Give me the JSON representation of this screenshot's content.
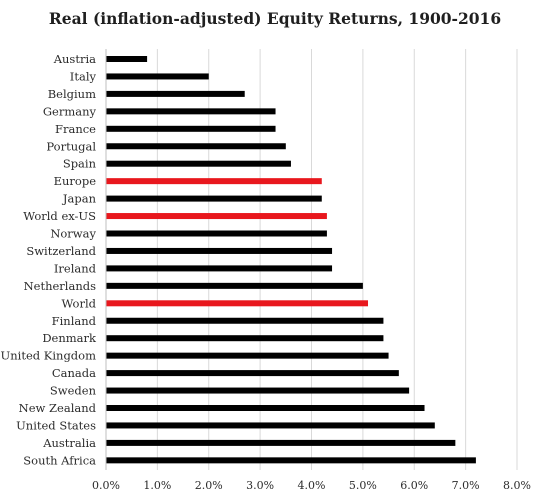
{
  "chart_data": {
    "type": "bar",
    "orientation": "horizontal",
    "title": "Real (inflation-adjusted) Equity Returns, 1900-2016",
    "xlabel": "",
    "ylabel": "",
    "categories": [
      "Austria",
      "Italy",
      "Belgium",
      "Germany",
      "France",
      "Portugal",
      "Spain",
      "Europe",
      "Japan",
      "World ex-US",
      "Norway",
      "Switzerland",
      "Ireland",
      "Netherlands",
      "World",
      "Finland",
      "Denmark",
      "United Kingdom",
      "Canada",
      "Sweden",
      "New Zealand",
      "United States",
      "Australia",
      "South Africa"
    ],
    "values": [
      0.8,
      2.0,
      2.7,
      3.3,
      3.3,
      3.5,
      3.6,
      4.2,
      4.2,
      4.3,
      4.3,
      4.4,
      4.4,
      5.0,
      5.1,
      5.4,
      5.4,
      5.5,
      5.7,
      5.9,
      6.2,
      6.4,
      6.8,
      7.2
    ],
    "highlight_categories": [
      "Europe",
      "World ex-US",
      "World"
    ],
    "xlim": [
      0,
      8
    ],
    "ticks": [
      0,
      1,
      2,
      3,
      4,
      5,
      6,
      7,
      8
    ],
    "tick_labels": [
      "0.0%",
      "1.0%",
      "2.0%",
      "3.0%",
      "4.0%",
      "5.0%",
      "6.0%",
      "7.0%",
      "8.0%"
    ],
    "grid": "vertical",
    "colors": {
      "bar": "#000000",
      "highlight": "#e8171d",
      "grid": "#d9d9d9"
    }
  }
}
